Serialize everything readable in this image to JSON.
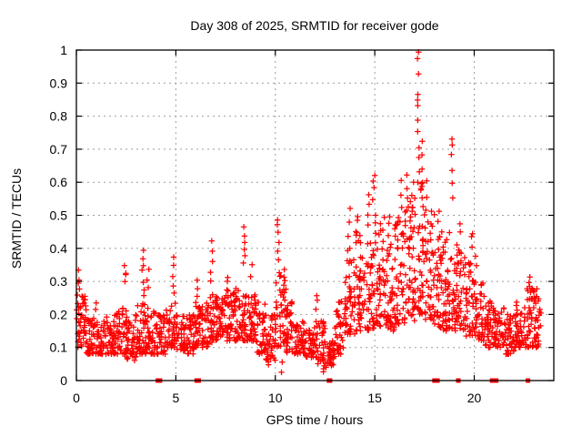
{
  "chart_data": {
    "type": "scatter",
    "title": "Day 308 of 2025, SRMTID for receiver gode",
    "xlabel": "GPS time / hours",
    "ylabel": "SRMTID / TECUs",
    "xlim": [
      0,
      24
    ],
    "ylim": [
      0,
      1
    ],
    "xtick_values": [
      0,
      5,
      10,
      15,
      20
    ],
    "xtick_labels": [
      "0",
      "5",
      "10",
      "15",
      "20"
    ],
    "ytick_values": [
      0,
      0.1,
      0.2,
      0.3,
      0.4,
      0.5,
      0.6,
      0.7,
      0.8,
      0.9,
      1
    ],
    "ytick_labels": [
      "0",
      "0.1",
      "0.2",
      "0.3",
      "0.4",
      "0.5",
      "0.6",
      "0.7",
      "0.8",
      "0.9",
      "1"
    ],
    "grid": "dotted",
    "legend": "none",
    "marker": "plus",
    "marker_color": "#ff0000",
    "axis_color": "#000000",
    "grid_color": "#9e9e9e",
    "background": "#ffffff",
    "seed": 308,
    "density_bins": [
      [
        0.0,
        0.5,
        46,
        0.1,
        0.26
      ],
      [
        0.5,
        1.0,
        40,
        0.08,
        0.19
      ],
      [
        1.0,
        1.5,
        40,
        0.08,
        0.18
      ],
      [
        1.5,
        2.0,
        40,
        0.08,
        0.2
      ],
      [
        2.0,
        2.5,
        40,
        0.08,
        0.22
      ],
      [
        2.5,
        3.0,
        42,
        0.06,
        0.2
      ],
      [
        3.0,
        3.5,
        45,
        0.08,
        0.24
      ],
      [
        3.5,
        4.0,
        40,
        0.08,
        0.22
      ],
      [
        4.0,
        4.5,
        40,
        0.08,
        0.2
      ],
      [
        4.5,
        5.0,
        42,
        0.1,
        0.24
      ],
      [
        5.0,
        5.5,
        40,
        0.09,
        0.2
      ],
      [
        5.5,
        6.0,
        40,
        0.08,
        0.2
      ],
      [
        6.0,
        6.5,
        42,
        0.1,
        0.24
      ],
      [
        6.5,
        7.0,
        42,
        0.1,
        0.26
      ],
      [
        7.0,
        7.5,
        45,
        0.12,
        0.26
      ],
      [
        7.5,
        8.0,
        45,
        0.12,
        0.28
      ],
      [
        8.0,
        8.5,
        45,
        0.12,
        0.28
      ],
      [
        8.5,
        9.0,
        42,
        0.12,
        0.26
      ],
      [
        9.0,
        9.5,
        40,
        0.08,
        0.24
      ],
      [
        9.5,
        10.0,
        38,
        0.06,
        0.2
      ],
      [
        10.0,
        10.5,
        42,
        0.1,
        0.32
      ],
      [
        10.5,
        11.0,
        40,
        0.08,
        0.24
      ],
      [
        11.0,
        11.5,
        40,
        0.08,
        0.18
      ],
      [
        11.5,
        12.0,
        40,
        0.07,
        0.16
      ],
      [
        12.0,
        12.5,
        38,
        0.05,
        0.18
      ],
      [
        12.5,
        13.0,
        35,
        0.04,
        0.12
      ],
      [
        13.0,
        13.5,
        38,
        0.08,
        0.24
      ],
      [
        13.5,
        14.0,
        42,
        0.14,
        0.4
      ],
      [
        14.0,
        14.5,
        45,
        0.15,
        0.45
      ],
      [
        14.5,
        15.0,
        45,
        0.15,
        0.42
      ],
      [
        15.0,
        15.5,
        45,
        0.16,
        0.5
      ],
      [
        15.5,
        16.0,
        45,
        0.15,
        0.44
      ],
      [
        16.0,
        16.5,
        48,
        0.17,
        0.5
      ],
      [
        16.5,
        17.0,
        48,
        0.18,
        0.55
      ],
      [
        17.0,
        17.5,
        48,
        0.2,
        0.6
      ],
      [
        17.5,
        18.0,
        45,
        0.18,
        0.52
      ],
      [
        18.0,
        18.5,
        45,
        0.15,
        0.45
      ],
      [
        18.5,
        19.0,
        45,
        0.15,
        0.46
      ],
      [
        19.0,
        19.5,
        45,
        0.15,
        0.42
      ],
      [
        19.5,
        20.0,
        42,
        0.13,
        0.38
      ],
      [
        20.0,
        20.5,
        40,
        0.12,
        0.3
      ],
      [
        20.5,
        21.0,
        40,
        0.1,
        0.24
      ],
      [
        21.0,
        21.5,
        40,
        0.1,
        0.22
      ],
      [
        21.5,
        22.0,
        38,
        0.08,
        0.2
      ],
      [
        22.0,
        22.5,
        40,
        0.1,
        0.24
      ],
      [
        22.5,
        23.0,
        42,
        0.1,
        0.28
      ],
      [
        23.0,
        23.35,
        30,
        0.1,
        0.26
      ]
    ],
    "spike_columns": [
      {
        "x": 0.15,
        "ys": [
          0.28,
          0.3,
          0.31,
          0.33
        ]
      },
      {
        "x": 1.0,
        "ys": [
          0.22,
          0.24
        ]
      },
      {
        "x": 2.45,
        "ys": [
          0.3,
          0.32,
          0.33,
          0.35
        ]
      },
      {
        "x": 3.35,
        "ys": [
          0.26,
          0.28,
          0.3,
          0.33,
          0.35,
          0.37,
          0.4
        ]
      },
      {
        "x": 3.6,
        "ys": [
          0.28,
          0.31,
          0.34
        ]
      },
      {
        "x": 4.9,
        "ys": [
          0.26,
          0.29,
          0.32,
          0.35,
          0.37
        ]
      },
      {
        "x": 6.1,
        "ys": [
          0.25,
          0.28,
          0.3
        ]
      },
      {
        "x": 6.8,
        "ys": [
          0.3,
          0.33,
          0.36,
          0.39,
          0.42
        ]
      },
      {
        "x": 7.6,
        "ys": [
          0.28,
          0.3,
          0.31
        ]
      },
      {
        "x": 8.45,
        "ys": [
          0.35,
          0.38,
          0.4,
          0.42,
          0.44,
          0.46
        ]
      },
      {
        "x": 8.8,
        "ys": [
          0.32,
          0.35
        ]
      },
      {
        "x": 9.6,
        "ys": [
          0.05,
          0.06
        ]
      },
      {
        "x": 10.15,
        "ys": [
          0.33,
          0.36,
          0.39,
          0.42,
          0.45,
          0.47,
          0.49
        ]
      },
      {
        "x": 10.35,
        "ys": [
          0.03,
          0.05
        ]
      },
      {
        "x": 10.5,
        "ys": [
          0.28,
          0.31,
          0.34
        ]
      },
      {
        "x": 12.1,
        "ys": [
          0.22,
          0.24,
          0.26
        ]
      },
      {
        "x": 12.4,
        "ys": [
          0.03,
          0.04,
          0.05,
          0.06
        ]
      },
      {
        "x": 13.7,
        "ys": [
          0.28,
          0.32,
          0.36,
          0.4,
          0.44,
          0.48,
          0.52
        ]
      },
      {
        "x": 14.1,
        "ys": [
          0.42,
          0.45,
          0.48,
          0.5
        ]
      },
      {
        "x": 14.7,
        "ys": [
          0.47,
          0.5,
          0.53,
          0.56
        ]
      },
      {
        "x": 14.95,
        "ys": [
          0.55,
          0.58,
          0.6,
          0.62
        ]
      },
      {
        "x": 15.3,
        "ys": [
          0.45,
          0.48
        ]
      },
      {
        "x": 15.7,
        "ys": [
          0.44,
          0.47,
          0.5
        ]
      },
      {
        "x": 16.3,
        "ys": [
          0.52,
          0.56,
          0.6
        ]
      },
      {
        "x": 16.65,
        "ys": [
          0.55,
          0.58,
          0.62
        ]
      },
      {
        "x": 16.9,
        "ys": [
          0.52,
          0.56,
          0.6
        ]
      },
      {
        "x": 17.2,
        "ys": [
          0.63,
          0.67,
          0.71,
          0.75,
          0.79,
          0.83,
          0.85,
          0.87,
          0.93,
          0.97,
          0.99
        ]
      },
      {
        "x": 17.35,
        "ys": [
          0.6,
          0.64,
          0.68,
          0.72
        ]
      },
      {
        "x": 17.6,
        "ys": [
          0.52,
          0.56,
          0.6
        ]
      },
      {
        "x": 18.2,
        "ys": [
          0.48,
          0.51
        ]
      },
      {
        "x": 18.9,
        "ys": [
          0.55,
          0.6,
          0.64,
          0.68,
          0.71,
          0.73
        ]
      },
      {
        "x": 19.3,
        "ys": [
          0.45,
          0.48
        ]
      },
      {
        "x": 19.9,
        "ys": [
          0.4,
          0.43,
          0.45
        ]
      },
      {
        "x": 20.1,
        "ys": [
          0.35,
          0.38
        ]
      },
      {
        "x": 22.8,
        "ys": [
          0.28,
          0.3,
          0.31
        ]
      },
      {
        "x": 23.1,
        "ys": [
          0.26,
          0.28
        ]
      }
    ],
    "zero_marker_hours": [
      4.1,
      4.15,
      4.2,
      6.05,
      6.15,
      12.7,
      12.75,
      18.0,
      18.15,
      19.2,
      20.9,
      21.0,
      21.05,
      21.1,
      22.7
    ]
  }
}
